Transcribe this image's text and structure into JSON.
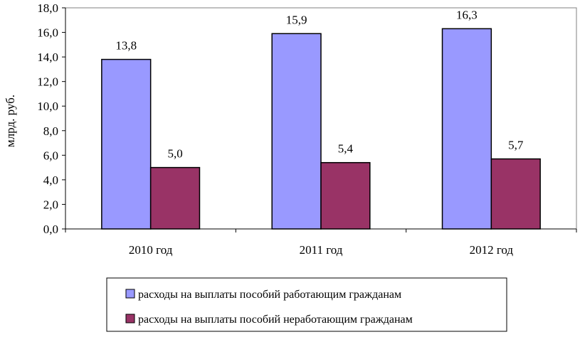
{
  "chart_data": {
    "type": "bar",
    "title": "",
    "xlabel": "",
    "ylabel": "млрд. руб.",
    "ylim": [
      0,
      18
    ],
    "ytick_step": 2,
    "ytick_labels": [
      "0,0",
      "2,0",
      "4,0",
      "6,0",
      "8,0",
      "10,0",
      "12,0",
      "14,0",
      "16,0",
      "18,0"
    ],
    "grid": false,
    "legend_position": "bottom",
    "categories": [
      "2010 год",
      "2011 год",
      "2012 год"
    ],
    "series": [
      {
        "name": "расходы на выплаты пособий работающим гражданам",
        "values": [
          13.8,
          15.9,
          16.3
        ],
        "labels": [
          "13,8",
          "15,9",
          "16,3"
        ],
        "color": "#9999ff"
      },
      {
        "name": "расходы на выплаты пособий неработающим гражданам",
        "values": [
          5.0,
          5.4,
          5.7
        ],
        "labels": [
          "5,0",
          "5,4",
          "5,7"
        ],
        "color": "#993366"
      }
    ]
  }
}
